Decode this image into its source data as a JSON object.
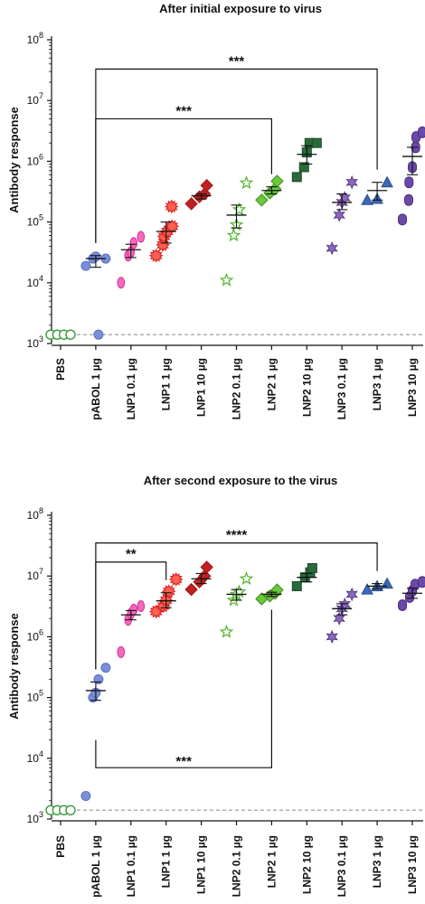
{
  "chart_data": [
    {
      "type": "scatter",
      "title": "After initial exposure to virus",
      "ylabel": "Antibody response",
      "yscale": "log",
      "ylim": [
        1000,
        100000000
      ],
      "yticks": [
        {
          "base": "10",
          "exp": "3"
        },
        {
          "base": "10",
          "exp": "4"
        },
        {
          "base": "10",
          "exp": "5"
        },
        {
          "base": "10",
          "exp": "6"
        },
        {
          "base": "10",
          "exp": "7"
        },
        {
          "base": "10",
          "exp": "8"
        }
      ],
      "categories": [
        "PBS",
        "pABOL 1 µg",
        "LNP1 0.1 µg",
        "LNP1 1 µg",
        "LNP1 10 µg",
        "LNP2 0.1 µg",
        "LNP2 1 µg",
        "LNP2 10 µg",
        "LNP3 0.1 µg",
        "LNP3 1 µg",
        "LNP3 10 µg"
      ],
      "baseline": 1400,
      "groups": [
        {
          "color": "#3a9a3a",
          "fill": "none",
          "shape": "circle",
          "values": [
            1400,
            1400,
            1400,
            1400
          ]
        },
        {
          "color": "#5a6ec8",
          "fill": "#7b8fd8",
          "shape": "circle",
          "values": [
            19000,
            25000,
            27000,
            1400,
            25000
          ],
          "mean": 25000,
          "sem_low": 18000,
          "sem_high": 28000
        },
        {
          "color": "#e0289a",
          "fill": "#f06cba",
          "shape": "ellipse",
          "values": [
            10000,
            28000,
            32000,
            45000,
            57000
          ],
          "mean": 35000,
          "sem_low": 26000,
          "sem_high": 43000
        },
        {
          "color": "#d42020",
          "fill": "#ff6050",
          "shape": "burst",
          "values": [
            28000,
            42000,
            58000,
            70000,
            85000,
            180000
          ],
          "mean": 70000,
          "sem_low": 45000,
          "sem_high": 100000
        },
        {
          "color": "#a01818",
          "fill": "#c02020",
          "shape": "diamond",
          "values": [
            200000,
            260000,
            290000,
            400000
          ],
          "mean": 270000,
          "sem_low": 240000,
          "sem_high": 290000
        },
        {
          "color": "#5ab83a",
          "fill": "none",
          "shape": "star",
          "values": [
            11000,
            60000,
            90000,
            160000,
            440000
          ],
          "mean": 130000,
          "sem_low": 80000,
          "sem_high": 190000
        },
        {
          "color": "#3a8a1a",
          "fill": "#6ac83a",
          "shape": "diamond",
          "values": [
            230000,
            300000,
            350000,
            470000
          ],
          "mean": 330000,
          "sem_low": 290000,
          "sem_high": 380000
        },
        {
          "color": "#1a4a2a",
          "fill": "#2a6a3a",
          "shape": "square",
          "values": [
            550000,
            800000,
            1400000,
            2000000,
            2000000
          ],
          "mean": 1300000,
          "sem_low": 900000,
          "sem_high": 1800000
        },
        {
          "color": "#5a3a8a",
          "fill": "#8a6ab8",
          "shape": "star6",
          "values": [
            37000,
            130000,
            210000,
            250000,
            450000
          ],
          "mean": 210000,
          "sem_low": 160000,
          "sem_high": 290000
        },
        {
          "color": "#2a4a8a",
          "fill": "#3a6ab8",
          "shape": "triangle",
          "values": [
            230000,
            240000,
            450000
          ],
          "mean": 330000,
          "sem_low": 230000,
          "sem_high": 450000
        },
        {
          "color": "#4a2a7a",
          "fill": "#6a4aa8",
          "shape": "capsule",
          "values": [
            110000,
            230000,
            450000,
            800000,
            1700000,
            2500000,
            3000000
          ],
          "mean": 1200000,
          "sem_low": 600000,
          "sem_high": 1700000
        }
      ],
      "brackets": [
        {
          "from": 1,
          "to": 9,
          "label": "***",
          "top": 33000000
        },
        {
          "from": 1,
          "to": 6,
          "label": "***",
          "top": 5000000
        }
      ]
    },
    {
      "type": "scatter",
      "title": "After second exposure to the virus",
      "ylabel": "Antibody response",
      "yscale": "log",
      "ylim": [
        1000,
        100000000
      ],
      "yticks": [
        {
          "base": "10",
          "exp": "3"
        },
        {
          "base": "10",
          "exp": "4"
        },
        {
          "base": "10",
          "exp": "5"
        },
        {
          "base": "10",
          "exp": "6"
        },
        {
          "base": "10",
          "exp": "7"
        },
        {
          "base": "10",
          "exp": "8"
        }
      ],
      "categories": [
        "PBS",
        "pABOL 1 µg",
        "LNP1 0.1 µg",
        "LNP1 1 µg",
        "LNP1 10 µg",
        "LNP2 0.1 µg",
        "LNP2 1 µg",
        "LNP2 10 µg",
        "LNP3 0.1 µg",
        "LNP3 1 µg",
        "LNP3 10 µg"
      ],
      "baseline": 1400,
      "groups": [
        {
          "color": "#3a9a3a",
          "fill": "none",
          "shape": "circle",
          "values": [
            1400,
            1400,
            1400,
            1400
          ]
        },
        {
          "color": "#5a6ec8",
          "fill": "#7b8fd8",
          "shape": "circle",
          "values": [
            2400,
            100000,
            120000,
            200000,
            310000
          ],
          "mean": 130000,
          "sem_low": 90000,
          "sem_high": 180000
        },
        {
          "color": "#e0289a",
          "fill": "#f06cba",
          "shape": "ellipse",
          "values": [
            560000,
            1900000,
            2400000,
            2800000,
            3200000
          ],
          "mean": 2300000,
          "sem_low": 1900000,
          "sem_high": 2700000
        },
        {
          "color": "#d42020",
          "fill": "#ff6050",
          "shape": "burst",
          "values": [
            2600000,
            3200000,
            4000000,
            5600000,
            8800000
          ],
          "mean": 3900000,
          "sem_low": 3000000,
          "sem_high": 5300000
        },
        {
          "color": "#a01818",
          "fill": "#c02020",
          "shape": "diamond",
          "values": [
            6000000,
            8000000,
            10000000,
            14000000
          ],
          "mean": 9000000,
          "sem_low": 7500000,
          "sem_high": 11000000
        },
        {
          "color": "#5ab83a",
          "fill": "none",
          "shape": "star",
          "values": [
            1200000,
            4000000,
            5000000,
            5500000,
            9000000
          ],
          "mean": 5000000,
          "sem_low": 4000000,
          "sem_high": 6000000
        },
        {
          "color": "#3a8a1a",
          "fill": "#6ac83a",
          "shape": "diamond",
          "values": [
            4200000,
            4700000,
            5200000,
            5900000
          ],
          "mean": 5000000,
          "sem_low": 4600000,
          "sem_high": 5400000
        },
        {
          "color": "#1a4a2a",
          "fill": "#2a6a3a",
          "shape": "square",
          "values": [
            6800000,
            9500000,
            11500000,
            13500000
          ],
          "mean": 9500000,
          "sem_low": 8000000,
          "sem_high": 11000000
        },
        {
          "color": "#5a3a8a",
          "fill": "#8a6ab8",
          "shape": "star6",
          "values": [
            1000000,
            2000000,
            2900000,
            3400000,
            5000000
          ],
          "mean": 2900000,
          "sem_low": 2300000,
          "sem_high": 3500000
        },
        {
          "color": "#2a4a8a",
          "fill": "#3a6ab8",
          "shape": "triangle",
          "values": [
            6000000,
            6800000,
            7500000
          ],
          "mean": 6800000,
          "sem_low": 6200000,
          "sem_high": 7500000
        },
        {
          "color": "#4a2a7a",
          "fill": "#6a4aa8",
          "shape": "capsule",
          "values": [
            3300000,
            4500000,
            5700000,
            7200000,
            8000000
          ],
          "mean": 5200000,
          "sem_low": 4300000,
          "sem_high": 6300000
        }
      ],
      "brackets": [
        {
          "from": 1,
          "to": 9,
          "label": "****",
          "top": 35000000
        },
        {
          "from": 1,
          "to": 3,
          "label": "**",
          "top": 17000000
        },
        {
          "from": 1,
          "to": 6,
          "label": "***",
          "top": 7000,
          "direction": "down",
          "anchor_from": 20000,
          "anchor_to": 2800000
        }
      ]
    }
  ]
}
